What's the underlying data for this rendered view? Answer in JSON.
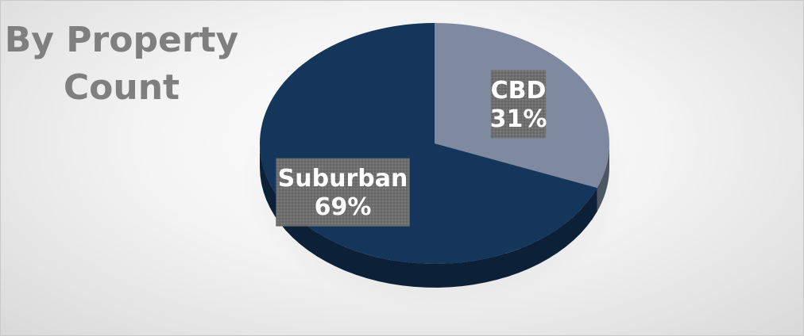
{
  "title_lines": [
    "By Property",
    "Count"
  ],
  "chart_data": {
    "type": "pie",
    "title": "By Property Count",
    "categories": [
      "CBD",
      "Suburban"
    ],
    "values": [
      31,
      69
    ],
    "unit": "%",
    "labels": [
      {
        "category": "CBD",
        "percent": "31%"
      },
      {
        "category": "Suburban",
        "percent": "69%"
      }
    ],
    "colors": {
      "CBD": "#7f8aa0",
      "Suburban": "#14365a"
    },
    "style": "3d-tilted",
    "legend": "none",
    "data_labels": "inside"
  }
}
